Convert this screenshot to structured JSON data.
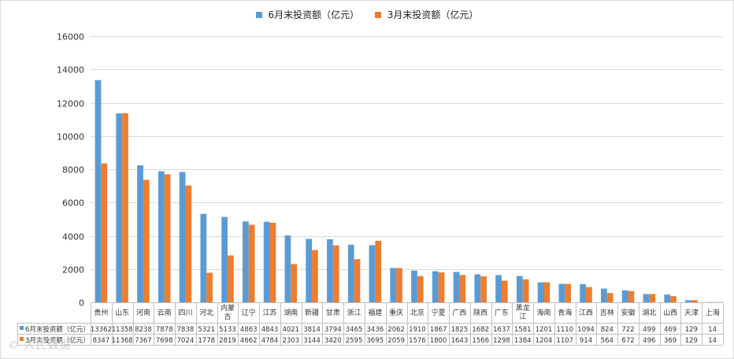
{
  "colors": {
    "series1": "#5B9BD5",
    "series2": "#ED7D31"
  },
  "legend": [
    {
      "label": "6月末投资额（亿元）",
      "color": "#5B9BD5"
    },
    {
      "label": "3月末投资额（亿元）",
      "color": "#ED7D31"
    }
  ],
  "chart_data": {
    "type": "bar",
    "categories": [
      "贵州",
      "山东",
      "河南",
      "云南",
      "四川",
      "河北",
      "内蒙古",
      "辽宁",
      "江苏",
      "湖南",
      "新疆",
      "甘肃",
      "浙江",
      "福建",
      "重庆",
      "北京",
      "宁夏",
      "广西",
      "陕西",
      "广东",
      "黑龙江",
      "海南",
      "青海",
      "江西",
      "吉林",
      "安徽",
      "湖北",
      "山西",
      "天津",
      "上海"
    ],
    "series": [
      {
        "name": "6月末投资额（亿元）",
        "color": "#5B9BD5",
        "values": [
          13362,
          11358,
          8238,
          7878,
          7838,
          5321,
          5133,
          4863,
          4843,
          4021,
          3814,
          3794,
          3465,
          3436,
          2062,
          1910,
          1867,
          1825,
          1682,
          1637,
          1581,
          1201,
          1110,
          1094,
          824,
          722,
          499,
          469,
          129,
          14
        ]
      },
      {
        "name": "3月末投资额（亿元）",
        "color": "#ED7D31",
        "values": [
          8347,
          11368,
          7367,
          7698,
          7024,
          1778,
          2819,
          4662,
          4784,
          2303,
          3144,
          3420,
          2595,
          3695,
          2059,
          1576,
          1800,
          1643,
          1566,
          1298,
          1384,
          1204,
          1107,
          914,
          564,
          672,
          496,
          369,
          129,
          14
        ]
      }
    ],
    "ylim": [
      0,
      16000
    ],
    "yticks": [
      "0",
      "2000",
      "4000",
      "6000",
      "8000",
      "10000",
      "12000",
      "14000",
      "16000"
    ],
    "grid": true,
    "legend_position": "top",
    "data_table": true
  },
  "watermark": "© 人民数据"
}
